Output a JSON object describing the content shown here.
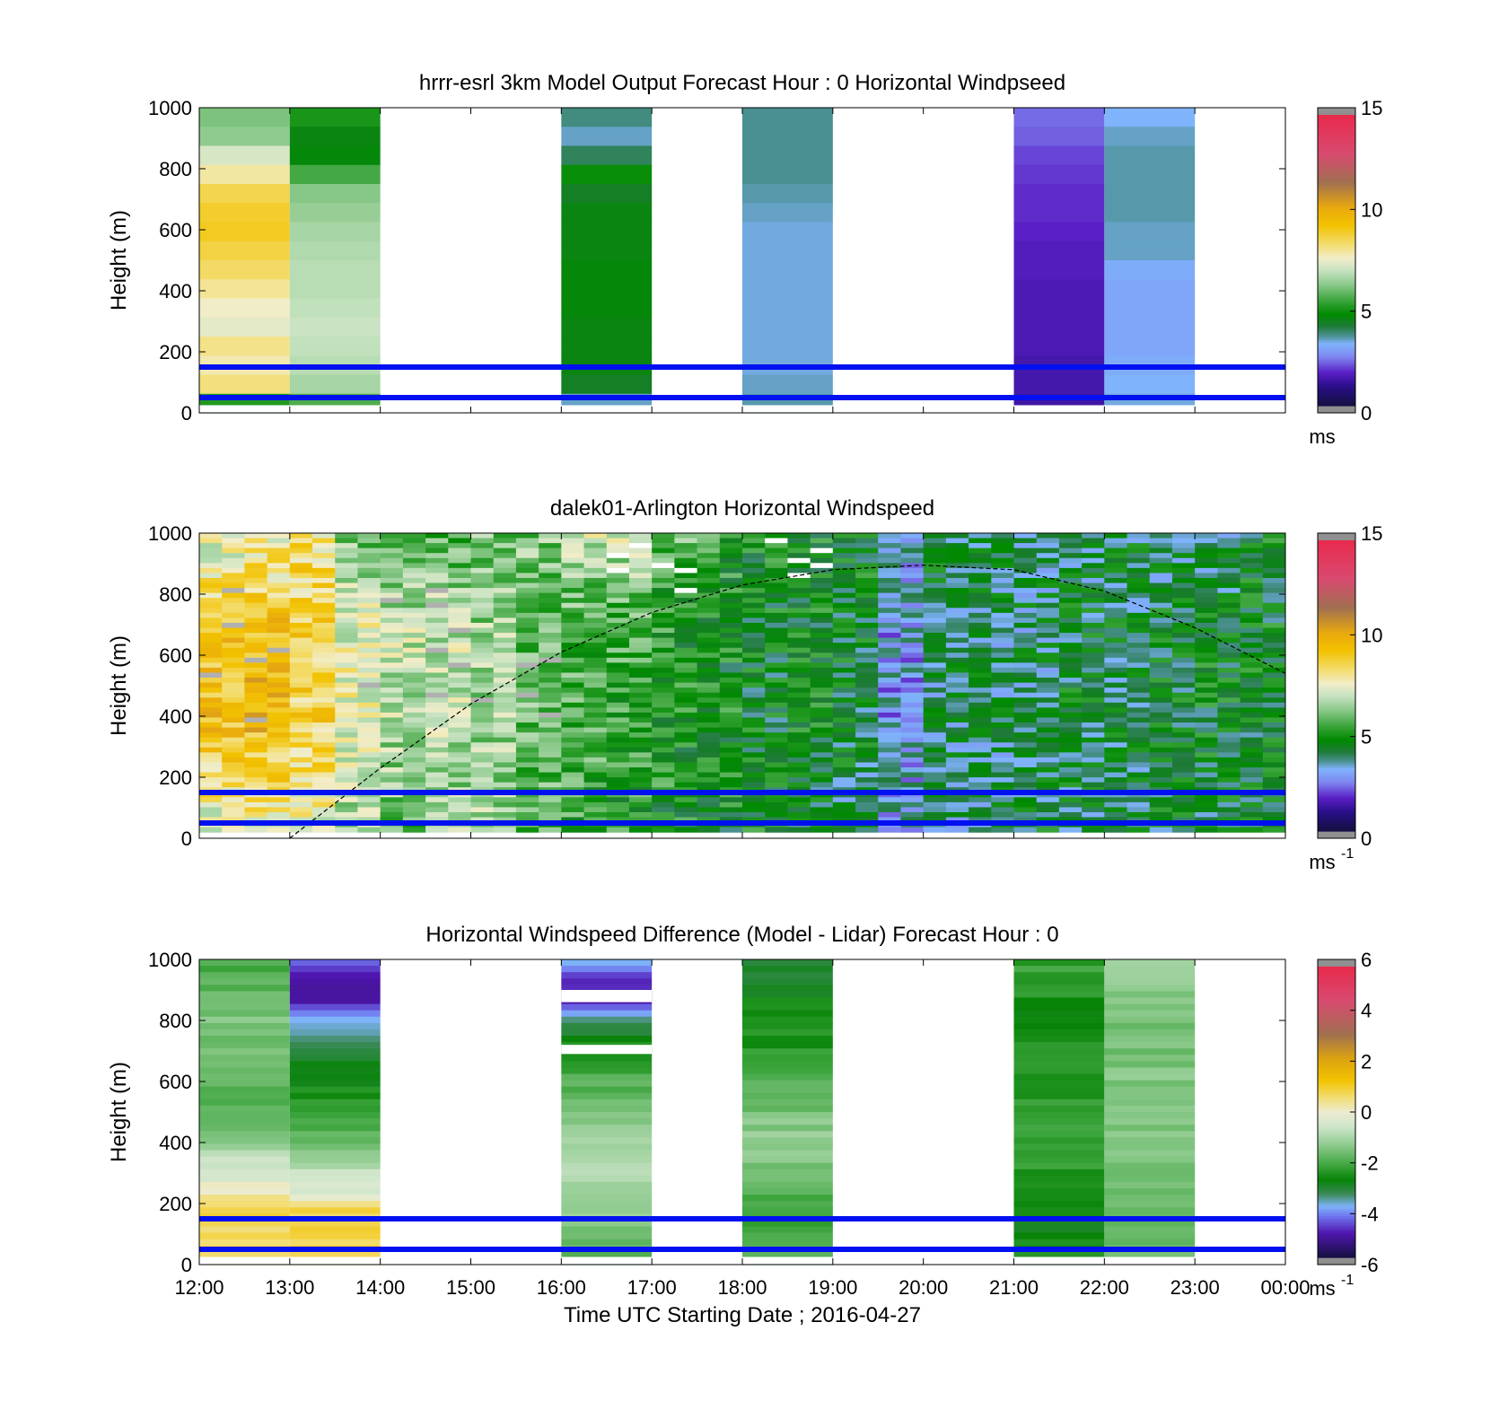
{
  "colors": {
    "line": "#0010f0",
    "axes": "#000000",
    "background": "#ffffff"
  },
  "chart_data": [
    {
      "type": "heatmap",
      "title": "hrrr-esrl 3km Model Output   Forecast Hour : 0 Horizontal Windpseed",
      "ylabel": "Height (m)",
      "xlabel": "",
      "ylim": [
        0,
        1000
      ],
      "yticks": [
        "0",
        "200",
        "400",
        "600",
        "800",
        "1000"
      ],
      "x_hours": [
        12,
        24
      ],
      "xtick_labels": [],
      "colorbar": {
        "ticks": [
          "0",
          "5",
          "10",
          "15"
        ],
        "range": [
          0,
          15
        ],
        "unit": "ms",
        "unit_sup": ""
      },
      "reference_lines_m": [
        50,
        150
      ],
      "columns": [
        {
          "x_start": 12,
          "x_end": 13,
          "speed_top_to_bottom": [
            6.1,
            6.3,
            7.2,
            7.9,
            8.6,
            8.9,
            9.0,
            8.7,
            8.4,
            8.0,
            7.6,
            7.4,
            8.1,
            7.8,
            8.2,
            5.1
          ]
        },
        {
          "x_start": 13,
          "x_end": 14,
          "speed_top_to_bottom": [
            5.0,
            4.5,
            4.6,
            5.5,
            6.2,
            6.4,
            6.6,
            6.7,
            6.8,
            6.8,
            6.9,
            7.0,
            6.9,
            6.8,
            6.6,
            5.6
          ]
        },
        {
          "x_start": 16,
          "x_end": 17,
          "speed_top_to_bottom": [
            3.7,
            3.4,
            3.9,
            4.8,
            4.3,
            4.5,
            4.5,
            4.5,
            4.6,
            4.6,
            4.6,
            4.5,
            4.5,
            4.5,
            4.3,
            3.4
          ]
        },
        {
          "x_start": 18,
          "x_end": 19,
          "speed_top_to_bottom": [
            3.6,
            3.6,
            3.6,
            3.6,
            3.5,
            3.4,
            3.3,
            3.3,
            3.3,
            3.3,
            3.3,
            3.3,
            3.3,
            3.3,
            3.4,
            3.5
          ]
        },
        {
          "x_start": 21,
          "x_end": 22,
          "speed_top_to_bottom": [
            2.3,
            2.2,
            2.0,
            1.9,
            1.8,
            1.8,
            1.7,
            1.6,
            1.6,
            1.5,
            1.5,
            1.5,
            1.5,
            1.4,
            1.4,
            1.3
          ]
        },
        {
          "x_start": 22,
          "x_end": 23,
          "speed_top_to_bottom": [
            3.2,
            3.4,
            3.5,
            3.5,
            3.5,
            3.5,
            3.4,
            3.4,
            3.1,
            3.0,
            3.0,
            3.0,
            3.0,
            3.1,
            3.2,
            3.3
          ]
        }
      ]
    },
    {
      "type": "heatmap",
      "title": "dalek01-Arlington  Horizontal Windspeed",
      "ylabel": "Height (m)",
      "xlabel": "",
      "ylim": [
        0,
        1000
      ],
      "yticks": [
        "0",
        "200",
        "400",
        "600",
        "800",
        "1000"
      ],
      "x_hours": [
        12,
        24
      ],
      "xtick_labels": [],
      "colorbar": {
        "ticks": [
          "0",
          "5",
          "10",
          "15"
        ],
        "range": [
          0,
          15
        ],
        "unit": "ms",
        "unit_sup": "-1"
      },
      "reference_lines_m": [
        50,
        150
      ],
      "boundary_layer_curve": {
        "x": [
          13.0,
          14.0,
          15.0,
          16.0,
          17.0,
          18.0,
          19.0,
          20.0,
          21.0,
          22.0,
          23.0,
          24.0
        ],
        "y": [
          0,
          230,
          440,
          610,
          740,
          830,
          880,
          895,
          880,
          810,
          690,
          540
        ]
      },
      "lidar_profile_keys": {
        "x_start": [
          12.0,
          12.5,
          13.0,
          13.5,
          14.0,
          14.5,
          15.0,
          15.5,
          16.0,
          16.5,
          17.0,
          17.5,
          18.0,
          18.5,
          19.0,
          19.5,
          20.0,
          20.5,
          21.0,
          21.5,
          22.0,
          22.5,
          23.0,
          23.5
        ],
        "low_level_speed": [
          7.0,
          7.4,
          7.3,
          6.2,
          5.8,
          6.3,
          6.6,
          5.5,
          5.2,
          5.0,
          4.9,
          4.7,
          4.6,
          4.4,
          4.0,
          3.2,
          3.8,
          3.9,
          4.4,
          4.0,
          4.1,
          4.2,
          4.3,
          4.4
        ],
        "mid_level_speed": [
          9.3,
          9.5,
          8.7,
          7.4,
          6.8,
          6.9,
          6.5,
          5.8,
          5.5,
          5.4,
          5.0,
          4.8,
          4.5,
          4.6,
          4.3,
          2.9,
          4.0,
          3.9,
          3.9,
          4.3,
          4.2,
          4.4,
          4.5,
          4.5
        ],
        "upper_level_speed": [
          7.1,
          7.4,
          8.2,
          5.9,
          5.6,
          5.5,
          6.0,
          6.2,
          7.0,
          7.2,
          5.8,
          5.3,
          4.9,
          4.8,
          4.7,
          3.3,
          4.2,
          4.3,
          4.0,
          3.8,
          4.1,
          3.6,
          3.8,
          4.5
        ]
      }
    },
    {
      "type": "heatmap",
      "title": "Horizontal Windspeed Difference (Model - Lidar) Forecast Hour : 0",
      "ylabel": "Height (m)",
      "xlabel": "Time UTC  Starting Date ; 2016-04-27",
      "ylim": [
        0,
        1000
      ],
      "yticks": [
        "0",
        "200",
        "400",
        "600",
        "800",
        "1000"
      ],
      "x_hours": [
        12,
        24
      ],
      "xtick_labels": [
        "12:00",
        "13:00",
        "14:00",
        "15:00",
        "16:00",
        "17:00",
        "18:00",
        "19:00",
        "20:00",
        "21:00",
        "22:00",
        "23:00",
        "00:00"
      ],
      "colorbar": {
        "ticks": [
          "-6",
          "-4",
          "-2",
          "0",
          "2",
          "4",
          "6"
        ],
        "range": [
          -6,
          6
        ],
        "unit": "ms",
        "unit_sup": "-1"
      },
      "reference_lines_m": [
        50,
        150
      ],
      "columns": [
        {
          "x_start": 12,
          "x_end": 13,
          "diff_top_to_bottom": [
            -2.1,
            -2.0,
            -1.7,
            -1.5,
            -1.6,
            -1.8,
            -1.9,
            -2.0,
            -1.9,
            -1.6,
            -1.0,
            -0.5,
            0.1,
            0.9,
            0.8,
            0.6
          ]
        },
        {
          "x_start": 13,
          "x_end": 14,
          "diff_top_to_bottom": [
            -4.6,
            -5.0,
            -4.9,
            -3.8,
            -3.4,
            -3.0,
            -2.8,
            -2.6,
            -2.3,
            -1.9,
            -1.3,
            -0.7,
            -0.3,
            0.9,
            0.8,
            0.9
          ]
        },
        {
          "x_start": 16,
          "x_end": 17,
          "diff_top_to_bottom": [
            -4.1,
            -5.0,
            -5.2,
            -3.5,
            -2.7,
            -2.4,
            -2.1,
            -1.8,
            -1.6,
            -1.2,
            -1.0,
            -1.0,
            -1.1,
            -1.3,
            -1.6,
            -1.9
          ]
        },
        {
          "x_start": 18,
          "x_end": 19,
          "diff_top_to_bottom": [
            -3.2,
            -3.0,
            -2.8,
            -2.7,
            -2.6,
            -2.4,
            -2.1,
            -1.9,
            -1.6,
            -1.3,
            -1.4,
            -1.6,
            -1.9,
            -2.2,
            -2.3,
            -2.1
          ]
        },
        {
          "x_start": 21,
          "x_end": 22,
          "diff_top_to_bottom": [
            -2.3,
            -2.4,
            -2.6,
            -2.8,
            -2.6,
            -2.4,
            -2.5,
            -2.4,
            -2.3,
            -2.2,
            -2.3,
            -2.5,
            -2.7,
            -2.8,
            -2.9,
            -2.7
          ]
        },
        {
          "x_start": 22,
          "x_end": 23,
          "diff_top_to_bottom": [
            -1.3,
            -1.4,
            -1.5,
            -1.6,
            -1.5,
            -1.7,
            -1.5,
            -1.6,
            -1.5,
            -1.4,
            -1.5,
            -1.6,
            -1.7,
            -1.8,
            -1.6,
            -1.7
          ]
        }
      ],
      "gaps_m": [
        {
          "x_start": 16,
          "x_end": 17,
          "from": 860,
          "to": 900
        },
        {
          "x_start": 16,
          "x_end": 17,
          "from": 690,
          "to": 720
        }
      ]
    }
  ]
}
